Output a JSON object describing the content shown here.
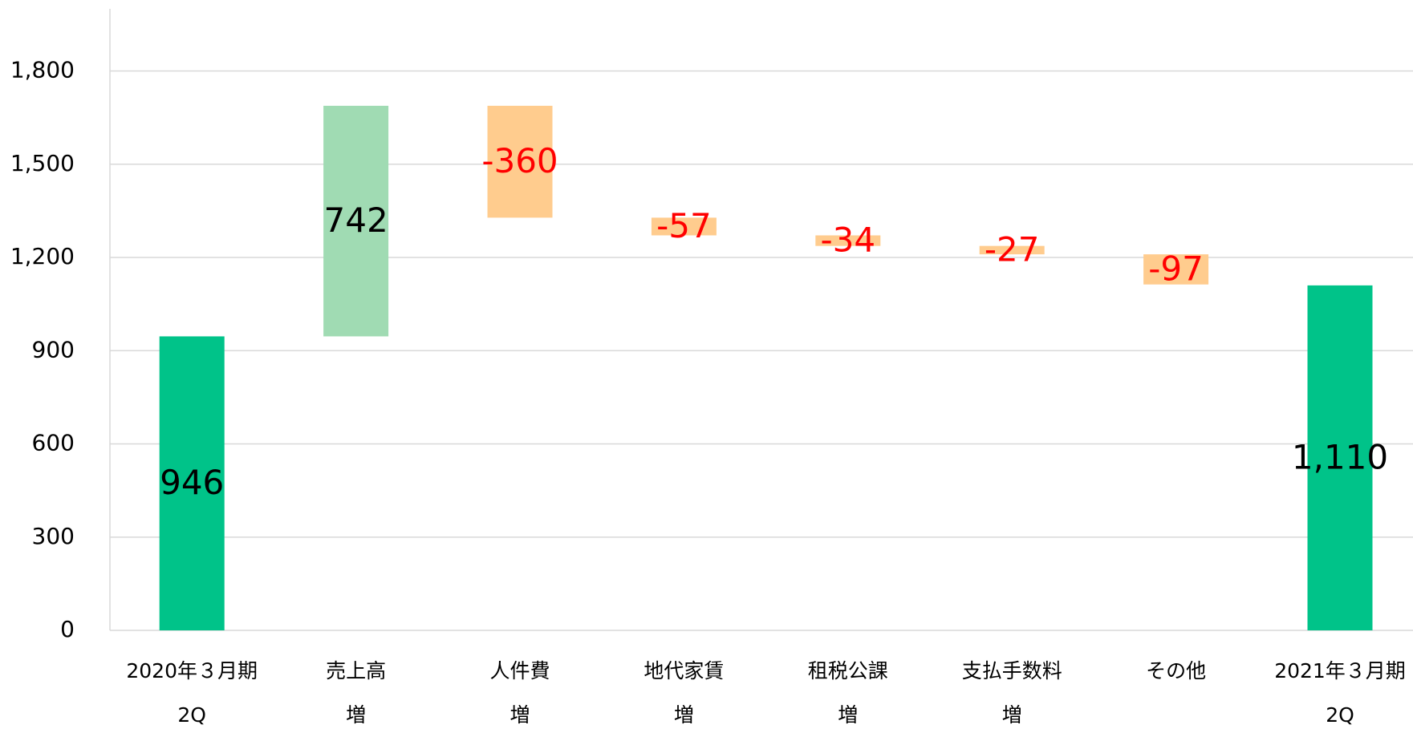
{
  "chart_data": {
    "type": "waterfall",
    "categories": [
      [
        "2020年３月期",
        "2Q"
      ],
      [
        "売上高",
        "増"
      ],
      [
        "人件費",
        "増"
      ],
      [
        "地代家賃",
        "増"
      ],
      [
        "租税公課",
        "増"
      ],
      [
        "支払手数料",
        "増"
      ],
      [
        "その他"
      ],
      [
        "2021年３月期",
        "2Q"
      ]
    ],
    "measure": [
      "absolute",
      "relative",
      "relative",
      "relative",
      "relative",
      "relative",
      "relative",
      "absolute"
    ],
    "values": [
      946,
      742,
      -360,
      -57,
      -34,
      -27,
      -97,
      1110
    ],
    "value_labels": [
      "946",
      "742",
      "-360",
      "-57",
      "-34",
      "-27",
      "-97",
      "1,110"
    ],
    "colors": {
      "total": "#00c389",
      "increase": "#a0dbb3",
      "decrease": "#ffcc8e"
    },
    "label_colors": {
      "positive": "#000000",
      "negative": "#ff0000"
    },
    "ylim": [
      0,
      2000
    ],
    "yticks": [
      0,
      300,
      600,
      900,
      {
        "value": 1200,
        "label": "1,200"
      },
      {
        "value": 1500,
        "label": "1,500"
      },
      {
        "value": 1800,
        "label": "1,800"
      }
    ],
    "grid": true
  }
}
